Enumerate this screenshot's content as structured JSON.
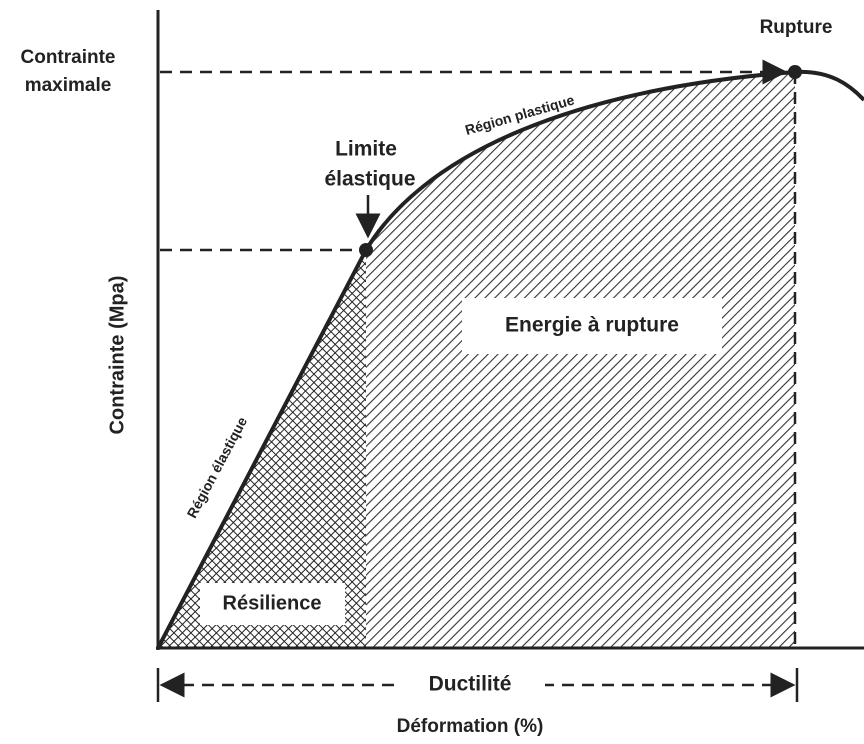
{
  "labels": {
    "max_stress": [
      "Contrainte",
      "maximale"
    ],
    "rupture": "Rupture",
    "elastic_limit": [
      "Limite",
      "élastique"
    ],
    "plastic_region": "Région plastique",
    "energy": "Energie à rupture",
    "y_axis": "Contrainte (Mpa)",
    "elastic_region": "Région élastique",
    "resilience": "Résilience",
    "ductility": "Ductilité",
    "x_axis": "Déformation (%)"
  }
}
